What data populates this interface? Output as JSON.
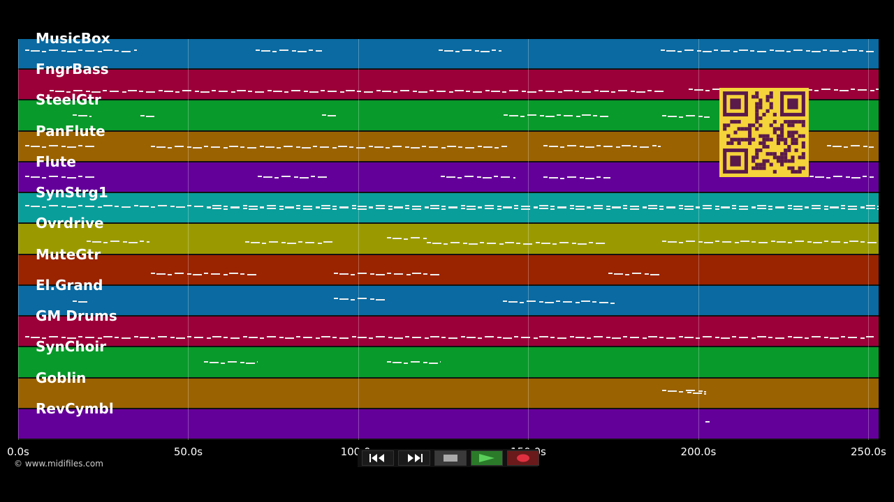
{
  "tracks": [
    {
      "name": "MusicBox",
      "color": "#0a6aa1"
    },
    {
      "name": "FngrBass",
      "color": "#9c0039"
    },
    {
      "name": "SteelGtr",
      "color": "#089a2a"
    },
    {
      "name": "PanFlute",
      "color": "#9a6200"
    },
    {
      "name": "Flute",
      "color": "#64009a"
    },
    {
      "name": "SynStrg1",
      "color": "#0a9e9a"
    },
    {
      "name": "Ovrdrive",
      "color": "#9a9a00"
    },
    {
      "name": "MuteGtr",
      "color": "#9a2300"
    },
    {
      "name": "El.Grand",
      "color": "#0a6aa1"
    },
    {
      "name": "GM Drums",
      "color": "#9c0039"
    },
    {
      "name": "SynChoir",
      "color": "#089a2a"
    },
    {
      "name": "Goblin",
      "color": "#9a6200"
    },
    {
      "name": "RevCymbl",
      "color": "#64009a"
    }
  ],
  "timeline": {
    "ticks": [
      "0.0s",
      "50.0s",
      "100.0s",
      "150.0s",
      "200.0s",
      "250.0s"
    ],
    "max_seconds": 253
  },
  "copyright": "© www.midifiles.com",
  "controls": {
    "rewind": "rewind-icon",
    "fast_forward": "fast-forward-icon",
    "stop": "stop-icon",
    "play": "play-icon",
    "record": "record-icon"
  },
  "colors": {
    "background": "#000000",
    "qr_bg": "#f5d33a",
    "qr_fg": "#5a1a4a",
    "play_green": "#3aaa3a",
    "record_red": "#e03040"
  }
}
